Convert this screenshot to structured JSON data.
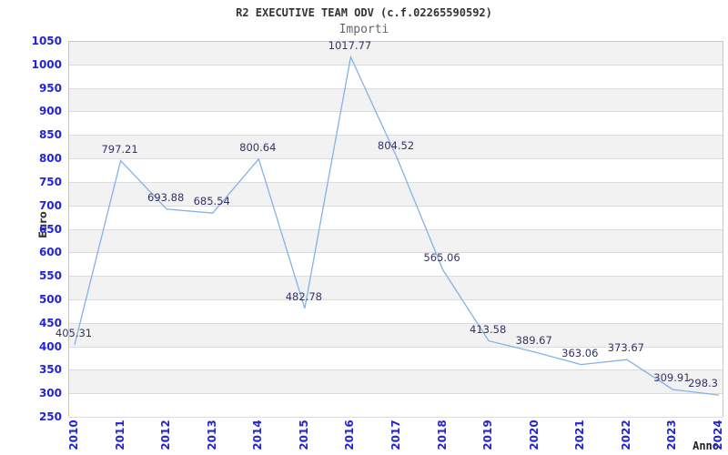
{
  "header": {
    "title": "R2 EXECUTIVE TEAM ODV (c.f.02265590592)",
    "subtitle": "Importi"
  },
  "chart_data": {
    "type": "line",
    "title": "R2 EXECUTIVE TEAM ODV (c.f.02265590592)",
    "subtitle": "Importi",
    "xlabel": "Anno",
    "ylabel": "Euro",
    "x": [
      "2010",
      "2011",
      "2012",
      "2013",
      "2014",
      "2015",
      "2016",
      "2017",
      "2018",
      "2019",
      "2020",
      "2021",
      "2022",
      "2023",
      "2024"
    ],
    "series": [
      {
        "name": "Importi",
        "values": [
          405.31,
          797.21,
          693.88,
          685.54,
          800.64,
          482.78,
          1017.77,
          804.52,
          565.06,
          413.58,
          389.67,
          363.06,
          373.67,
          309.91,
          298.3
        ]
      }
    ],
    "ylim": [
      250,
      1050
    ],
    "ytick_step": 50,
    "grid": "horizontal-bands-alternating",
    "legend": "none",
    "data_labels": "shown",
    "colors": {
      "line": "#85b1e7",
      "tick_label": "#2424d6",
      "data_label": "#333366",
      "band_gray": "#f2f2f2",
      "band_white": "#ffffff",
      "gridline": "#dcdcdc",
      "plot_border": "#c6c6c6",
      "title": "#333333",
      "subtitle": "#666666",
      "axis_title": "#333333"
    }
  }
}
